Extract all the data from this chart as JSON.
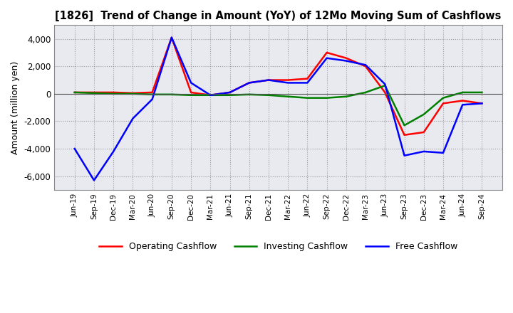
{
  "title": "[1826]  Trend of Change in Amount (YoY) of 12Mo Moving Sum of Cashflows",
  "ylabel": "Amount (million yen)",
  "x_labels": [
    "Jun-19",
    "Sep-19",
    "Dec-19",
    "Mar-20",
    "Jun-20",
    "Sep-20",
    "Dec-20",
    "Mar-21",
    "Jun-21",
    "Sep-21",
    "Dec-21",
    "Mar-22",
    "Jun-22",
    "Sep-22",
    "Dec-22",
    "Mar-23",
    "Jun-23",
    "Sep-23",
    "Dec-23",
    "Mar-24",
    "Jun-24",
    "Sep-24"
  ],
  "operating": [
    100,
    100,
    100,
    50,
    100,
    4100,
    100,
    -100,
    100,
    800,
    1000,
    1000,
    1100,
    3000,
    2600,
    2000,
    100,
    -3000,
    -2800,
    -700,
    -500,
    -700
  ],
  "investing": [
    100,
    50,
    0,
    0,
    -50,
    -50,
    -100,
    -100,
    -100,
    -50,
    -100,
    -200,
    -300,
    -300,
    -200,
    100,
    600,
    -2300,
    -1500,
    -300,
    100,
    100
  ],
  "free": [
    -4000,
    -6300,
    -4200,
    -1800,
    -400,
    4100,
    800,
    -100,
    100,
    800,
    1000,
    800,
    800,
    2600,
    2400,
    2100,
    700,
    -4500,
    -4200,
    -4300,
    -800,
    -700
  ],
  "ylim": [
    -7000,
    5000
  ],
  "yticks": [
    -6000,
    -4000,
    -2000,
    0,
    2000,
    4000
  ],
  "operating_color": "#ff0000",
  "investing_color": "#008000",
  "free_color": "#0000ff",
  "legend_labels": [
    "Operating Cashflow",
    "Investing Cashflow",
    "Free Cashflow"
  ],
  "background_color": "#ffffff",
  "plot_bg_color": "#e8eaf0",
  "grid_color": "#999999"
}
